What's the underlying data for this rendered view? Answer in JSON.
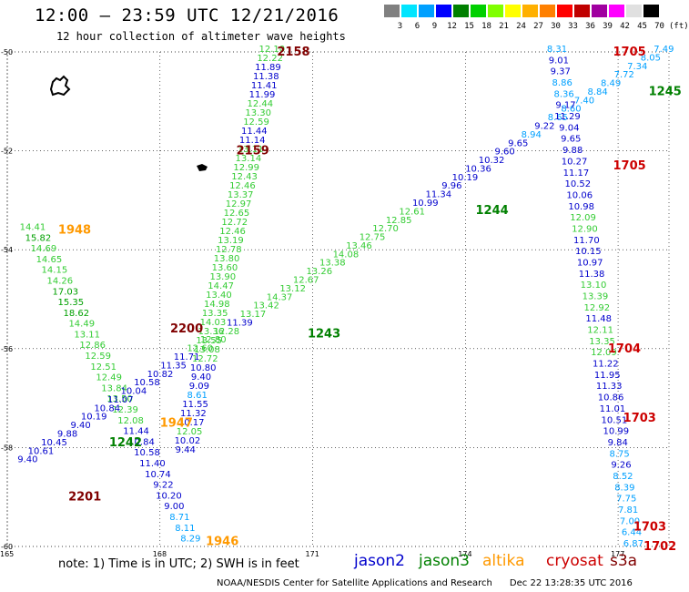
{
  "title": "12:00 – 23:59 UTC 12/21/2016",
  "subtitle": "12 hour collection of altimeter wave heights",
  "scale": {
    "colors": [
      "#808080",
      "#00e5ff",
      "#00a0ff",
      "#0000ff",
      "#008000",
      "#00d000",
      "#80ff00",
      "#ffff00",
      "#ffb000",
      "#ff8000",
      "#ff0000",
      "#c00000",
      "#a000a0",
      "#ff00ff",
      "#e0e0e0",
      "#000000"
    ],
    "labels": [
      "3",
      "6",
      "9",
      "12",
      "15",
      "18",
      "21",
      "24",
      "27",
      "30",
      "33",
      "36",
      "39",
      "42",
      "45",
      "70",
      "(ft)"
    ]
  },
  "axes": {
    "lat_labels": [
      "-50",
      "-52",
      "-54",
      "-56",
      "-58",
      "-60"
    ],
    "lat_values": [
      -50,
      -52,
      -54,
      -56,
      -58,
      -60
    ],
    "lon_labels": [
      "165",
      "168",
      "171",
      "174",
      "177"
    ],
    "lon_values": [
      165,
      168,
      171,
      174,
      177
    ],
    "lon_range": [
      165,
      178
    ],
    "lat_range": [
      -50,
      -60
    ]
  },
  "colors": {
    "jason2": "#0000cc",
    "jason3": "#008000",
    "altika": "#ff9900",
    "cryosat": "#cc0000",
    "s3a": "#800000",
    "grid": "#000000"
  },
  "tracks": [
    {
      "sat": "s3a",
      "start": [
        168.5,
        -58.1
      ],
      "end": [
        170.2,
        -50.0
      ],
      "values": [
        "9.44",
        "10.02",
        "12.05",
        "10.17",
        "11.32",
        "11.55",
        "8.61",
        "9.09",
        "9.40",
        "10.80",
        "12.72",
        "13.08",
        "13.55",
        "13.36",
        "14.03",
        "13.35",
        "14.98",
        "13.40",
        "14.47",
        "13.90",
        "13.60",
        "13.80",
        "12.78",
        "13.19",
        "12.46",
        "12.72",
        "12.65",
        "12.97",
        "13.37",
        "12.46",
        "12.43",
        "12.99",
        "13.14",
        "13.11",
        "11.14",
        "11.44",
        "12.59",
        "13.30",
        "12.44",
        "11.99",
        "11.41",
        "11.38",
        "11.89",
        "12.22",
        "12.10"
      ]
    },
    {
      "sat": "altika",
      "start": [
        165.5,
        -53.6
      ],
      "end": [
        168.6,
        -59.9
      ],
      "values": [
        "14.41",
        "15.82",
        "14.69",
        "14.65",
        "14.15",
        "14.26",
        "17.03",
        "15.35",
        "18.62",
        "14.49",
        "13.11",
        "12.86",
        "12.59",
        "12.51",
        "12.49",
        "13.84",
        "13.50",
        "12.39",
        "12.08",
        "11.44",
        "10.84",
        "10.58",
        "11.40",
        "10.74",
        "9.22",
        "10.20",
        "9.00",
        "8.71",
        "8.11",
        "8.29"
      ]
    },
    {
      "sat": "jason3",
      "start": [
        165.4,
        -58.3
      ],
      "end": [
        177.9,
        -50.0
      ],
      "values": [
        "9.40",
        "10.61",
        "10.45",
        "9.88",
        "9.40",
        "10.19",
        "10.84",
        "11.07",
        "10.04",
        "10.58",
        "10.82",
        "11.35",
        "11.71",
        "12.60",
        "12.80",
        "12.28",
        "11.39",
        "13.17",
        "13.42",
        "14.37",
        "13.12",
        "12.67",
        "13.26",
        "13.38",
        "14.08",
        "13.46",
        "12.75",
        "12.70",
        "12.85",
        "12.61",
        "10.99",
        "11.34",
        "9.96",
        "10.19",
        "10.36",
        "10.32",
        "9.60",
        "9.65",
        "8.94",
        "9.22",
        "8.65",
        "8.60",
        "7.40",
        "8.84",
        "8.49",
        "7.72",
        "7.34",
        "8.05",
        "7.49"
      ]
    },
    {
      "sat": "jason2",
      "start": [
        175.8,
        -50.0
      ],
      "end": [
        177.3,
        -60.0
      ],
      "values": [
        "8.31",
        "9.01",
        "9.37",
        "8.86",
        "8.36",
        "9.17",
        "11.29",
        "9.04",
        "9.65",
        "9.88",
        "10.27",
        "11.17",
        "10.52",
        "10.06",
        "10.98",
        "12.09",
        "12.90",
        "11.70",
        "10.15",
        "10.97",
        "11.38",
        "13.10",
        "13.39",
        "12.92",
        "11.48",
        "12.11",
        "13.35",
        "12.09",
        "11.22",
        "11.95",
        "11.33",
        "10.86",
        "11.01",
        "10.51",
        "10.99",
        "9.84",
        "8.75",
        "9.26",
        "8.52",
        "8.39",
        "7.75",
        "7.81",
        "7.00",
        "6.44",
        "6.87"
      ]
    }
  ],
  "time_labels": [
    {
      "text": "2158",
      "sat": "s3a",
      "lon": 170.3,
      "lat": -50.0
    },
    {
      "text": "2159",
      "sat": "s3a",
      "lon": 169.5,
      "lat": -52.0
    },
    {
      "text": "2200",
      "sat": "s3a",
      "lon": 168.2,
      "lat": -55.6
    },
    {
      "text": "2201",
      "sat": "s3a",
      "lon": 166.2,
      "lat": -59.0
    },
    {
      "text": "1948",
      "sat": "altika",
      "lon": 166.0,
      "lat": -53.6
    },
    {
      "text": "1947",
      "sat": "altika",
      "lon": 168.0,
      "lat": -57.5
    },
    {
      "text": "1946",
      "sat": "altika",
      "lon": 168.9,
      "lat": -59.9
    },
    {
      "text": "1245",
      "sat": "jason3",
      "lon": 177.6,
      "lat": -50.8
    },
    {
      "text": "1244",
      "sat": "jason3",
      "lon": 174.2,
      "lat": -53.2
    },
    {
      "text": "1243",
      "sat": "jason3",
      "lon": 170.9,
      "lat": -55.7
    },
    {
      "text": "1242",
      "sat": "jason3",
      "lon": 167.0,
      "lat": -57.9
    },
    {
      "text": "1705",
      "sat": "cryosat",
      "lon": 176.9,
      "lat": -50.0
    },
    {
      "text": "1705",
      "sat": "cryosat",
      "lon": 176.9,
      "lat": -52.3
    },
    {
      "text": "1704",
      "sat": "cryosat",
      "lon": 176.8,
      "lat": -56.0
    },
    {
      "text": "1703",
      "sat": "cryosat",
      "lon": 177.1,
      "lat": -57.4
    },
    {
      "text": "1703",
      "sat": "cryosat",
      "lon": 177.3,
      "lat": -59.6
    },
    {
      "text": "1702",
      "sat": "cryosat",
      "lon": 177.5,
      "lat": -60.0
    }
  ],
  "note": "note: 1) Time is in UTC; 2) SWH is in feet",
  "legend": [
    {
      "name": "jason2",
      "color": "#0000cc"
    },
    {
      "name": "jason3",
      "color": "#008000"
    },
    {
      "name": "altika",
      "color": "#ff9900"
    },
    {
      "name": "cryosat",
      "color": "#cc0000"
    },
    {
      "name": "s3a",
      "color": "#800000"
    }
  ],
  "credit": "NOAA/NESDIS Center for Satellite Applications and Research      Dec 22 13:28:35 UTC 2016"
}
